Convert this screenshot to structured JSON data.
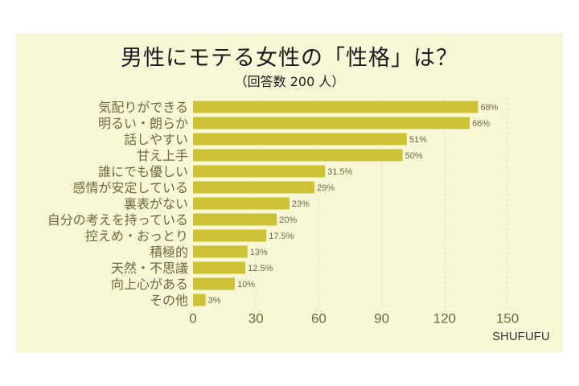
{
  "chart_data": {
    "type": "bar",
    "orientation": "horizontal",
    "title": "男性にモテる女性の「性格」は？",
    "subtitle": "（回答数 200 人）",
    "categories": [
      "気配りができる",
      "明るい・朗らか",
      "話しやすい",
      "甘え上手",
      "誰にでも優しい",
      "感情が安定している",
      "裏表がない",
      "自分の考えを持っている",
      "控えめ・おっとり",
      "積極的",
      "天然・不思議",
      "向上心がある",
      "その他"
    ],
    "values": [
      136,
      132,
      102,
      100,
      63,
      58,
      46,
      40,
      35,
      26,
      25,
      20,
      6
    ],
    "data_labels": [
      "68%",
      "66%",
      "51%",
      "50%",
      "31.5%",
      "29%",
      "23%",
      "20%",
      "17.5%",
      "13%",
      "12.5%",
      "10%",
      "3%"
    ],
    "xlim": [
      0,
      150
    ],
    "xticks": [
      "0",
      "30",
      "60",
      "90",
      "120",
      "150"
    ],
    "grid": "vertical dashed",
    "legend": "none",
    "colors": {
      "bar": "#cbc333",
      "background": "#f8f8d8",
      "label": "#6b6a3a"
    }
  },
  "brand": "SHUFUFU"
}
